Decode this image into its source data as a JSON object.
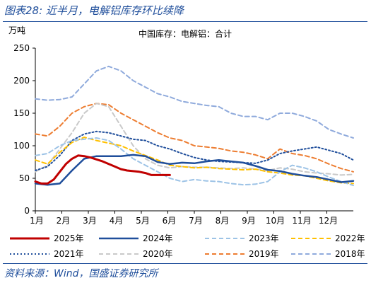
{
  "figure_title": "图表28: 近半月，电解铝库存环比续降",
  "source_note": "资料来源：Wind，国盛证券研究所",
  "chart_data": {
    "type": "line",
    "title": "中国库存：电解铝：合计",
    "ylabel": "万吨",
    "xlabel": "",
    "ylim": [
      0,
      250
    ],
    "yticks": [
      0,
      50,
      100,
      150,
      200,
      250
    ],
    "x_tick_labels": [
      "1月",
      "2月",
      "3月",
      "4月",
      "5月",
      "6月",
      "7月",
      "8月",
      "9月",
      "10月",
      "11月",
      "12月"
    ],
    "x_range_weeks": [
      1,
      53
    ],
    "grid": false,
    "legend_placement": "bottom",
    "series": [
      {
        "name": "2025年",
        "color": "#c00000",
        "dash": "solid",
        "width": 3,
        "x": [
          1,
          2,
          3,
          4,
          5,
          6,
          7,
          8,
          9,
          10,
          11,
          12,
          13,
          14,
          15,
          16,
          17,
          18,
          19,
          20,
          21,
          22,
          23
        ],
        "y": [
          45,
          42,
          42,
          48,
          60,
          72,
          80,
          85,
          84,
          82,
          79,
          76,
          72,
          68,
          64,
          62,
          61,
          60,
          58,
          55,
          55,
          55,
          55
        ]
      },
      {
        "name": "2024年",
        "color": "#1f4e9b",
        "dash": "solid",
        "width": 2.5,
        "x": [
          1,
          3,
          5,
          7,
          9,
          11,
          13,
          15,
          17,
          19,
          21,
          23,
          25,
          27,
          29,
          31,
          33,
          35,
          37,
          39,
          41,
          43,
          45,
          47,
          49,
          51,
          53
        ],
        "y": [
          42,
          40,
          42,
          62,
          80,
          84,
          84,
          84,
          86,
          84,
          75,
          72,
          74,
          73,
          76,
          78,
          76,
          74,
          69,
          63,
          61,
          57,
          54,
          52,
          48,
          44,
          46
        ]
      },
      {
        "name": "2023年",
        "color": "#9dc3e6",
        "dash": "6,4",
        "width": 2,
        "x": [
          1,
          3,
          5,
          7,
          9,
          11,
          13,
          15,
          17,
          19,
          21,
          23,
          25,
          27,
          29,
          31,
          33,
          35,
          37,
          39,
          41,
          43,
          45,
          47,
          49,
          51,
          53
        ],
        "y": [
          85,
          88,
          100,
          108,
          110,
          112,
          108,
          95,
          80,
          70,
          60,
          50,
          45,
          48,
          46,
          45,
          42,
          40,
          41,
          45,
          60,
          70,
          66,
          60,
          52,
          45,
          39
        ]
      },
      {
        "name": "2022年",
        "color": "#ffc000",
        "dash": "6,4",
        "width": 2,
        "x": [
          1,
          3,
          5,
          7,
          9,
          11,
          13,
          15,
          17,
          19,
          21,
          23,
          25,
          27,
          29,
          31,
          33,
          35,
          37,
          39,
          41,
          43,
          45,
          47,
          49,
          51,
          53
        ],
        "y": [
          78,
          72,
          90,
          105,
          113,
          108,
          104,
          100,
          92,
          85,
          78,
          70,
          68,
          66,
          67,
          65,
          64,
          63,
          64,
          60,
          58,
          55,
          54,
          50,
          46,
          43,
          42
        ]
      },
      {
        "name": "2021年",
        "color": "#1f4e9b",
        "dash": "2,3",
        "width": 2,
        "x": [
          1,
          3,
          5,
          7,
          9,
          11,
          13,
          15,
          17,
          19,
          21,
          23,
          25,
          27,
          29,
          31,
          33,
          35,
          37,
          39,
          41,
          43,
          45,
          47,
          49,
          51,
          53
        ],
        "y": [
          62,
          68,
          85,
          108,
          118,
          122,
          120,
          115,
          110,
          108,
          100,
          95,
          88,
          82,
          78,
          76,
          75,
          74,
          73,
          78,
          88,
          92,
          95,
          98,
          93,
          88,
          78
        ]
      },
      {
        "name": "2020年",
        "color": "#c9c9c9",
        "dash": "6,4",
        "width": 2,
        "x": [
          1,
          3,
          5,
          7,
          9,
          11,
          13,
          15,
          17,
          19,
          21,
          23,
          25,
          27,
          29,
          31,
          33,
          35,
          37,
          39,
          41,
          43,
          45,
          47,
          49,
          51,
          53
        ],
        "y": [
          60,
          70,
          95,
          120,
          150,
          165,
          160,
          130,
          100,
          80,
          70,
          66,
          68,
          67,
          67,
          66,
          65,
          66,
          64,
          62,
          66,
          64,
          60,
          58,
          57,
          55,
          56
        ]
      },
      {
        "name": "2019年",
        "color": "#ed7d31",
        "dash": "6,4",
        "width": 2,
        "x": [
          1,
          3,
          5,
          7,
          9,
          11,
          13,
          15,
          17,
          19,
          21,
          23,
          25,
          27,
          29,
          31,
          33,
          35,
          37,
          39,
          41,
          43,
          45,
          47,
          49,
          51,
          53
        ],
        "y": [
          118,
          115,
          130,
          150,
          160,
          165,
          163,
          150,
          140,
          130,
          120,
          112,
          108,
          100,
          98,
          96,
          92,
          90,
          86,
          80,
          95,
          88,
          85,
          80,
          72,
          65,
          60
        ]
      },
      {
        "name": "2018年",
        "color": "#8faadc",
        "dash": "6,4",
        "width": 2,
        "x": [
          1,
          3,
          5,
          7,
          9,
          11,
          13,
          15,
          17,
          19,
          21,
          23,
          25,
          27,
          29,
          31,
          33,
          35,
          37,
          39,
          41,
          43,
          45,
          47,
          49,
          51,
          53
        ],
        "y": [
          172,
          170,
          171,
          175,
          195,
          215,
          222,
          215,
          200,
          190,
          180,
          175,
          168,
          165,
          162,
          160,
          150,
          145,
          145,
          140,
          150,
          150,
          145,
          138,
          125,
          118,
          112
        ]
      }
    ]
  }
}
